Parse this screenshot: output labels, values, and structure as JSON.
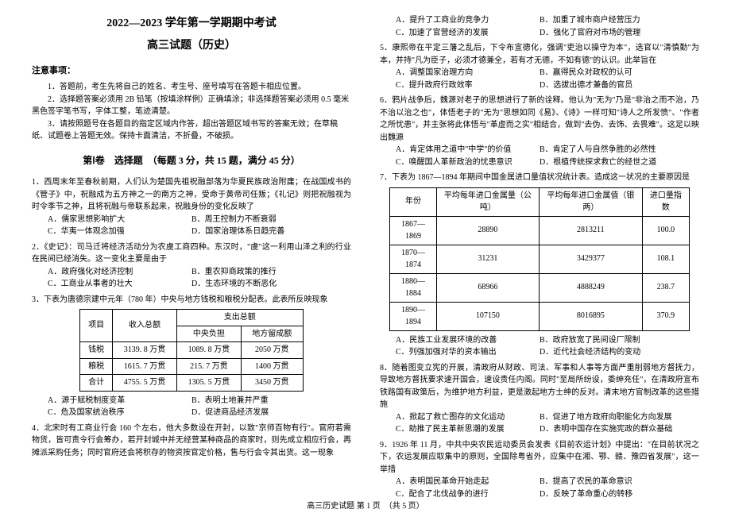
{
  "header": {
    "title_main": "2022—2023 学年第一学期期中考试",
    "title_sub": "高三试题（历史）"
  },
  "notice": {
    "head": "注意事项：",
    "items": [
      "1．答题前，考生先将自己的姓名、考生号、座号填写在答题卡相应位置。",
      "2．选择题答案必须用 2B 铅笔（按填涂样例）正确填涂；非选择题答案必须用 0.5 毫米黑色签字笔书写，字体工整，笔迹清楚。",
      "3．请按照题号在各题目的指定区域内作答，超出答题区域书写的答案无效；在草稿纸、试题卷上答题无效。保持卡面清洁，不折叠，不破损。"
    ]
  },
  "part1_title": "第Ⅰ卷　选择题　（每题 3 分，共 15 题，满分 45 分）",
  "q1": {
    "stem": "1．西周末年至春秋前期，人们认为楚国先祖祝融部落为华夏民族政治附庸；在战国成书的《管子》中，祝融成为五方神之一的南方之神，受命于黄帝司任叛；《礼记》则把祝融视为时令季节之神，且将祝融与帝联系起来，祝融身份的变化反映了",
    "opts": [
      "A．儒家思想影响扩大",
      "B．周王控制力不断衰弱",
      "C．华夷一体观念加强",
      "D．国家治理体系日趋完善"
    ]
  },
  "q2": {
    "stem": "2．《史记》：司马迁将经济活动分为农虞工商四种。东汉时，\"虞\"这一利用山泽之利的行业在民间已经消失。这一变化主要是由于",
    "opts": [
      "A．政府强化对经济控制",
      "B．重农抑商政策的推行",
      "C．工商业从事者的壮大",
      "D．生态环境的不断恶化"
    ]
  },
  "q3": {
    "stem": "3．下表为唐德宗建中元年（780 年）中央与地方钱税和粮税分配表。此表所反映现象",
    "table": {
      "head_r1": [
        "项目",
        "收入总额",
        "支出总额"
      ],
      "head_r2": [
        "",
        "",
        "中央负担",
        "地方留成额"
      ],
      "rows": [
        [
          "钱税",
          "3139. 8 万贯",
          "1089. 8 万贯",
          "2050 万贯"
        ],
        [
          "粮税",
          "1615. 7 万贯",
          "215. 7 万贯",
          "1400 万贯"
        ],
        [
          "合计",
          "4755. 5 万贯",
          "1305. 5 万贯",
          "3450 万贯"
        ]
      ]
    },
    "opts": [
      "A．源于赋税制度变革",
      "B．表明土地兼并严重",
      "C．危及国家统治秩序",
      "D．促进商品经济发展"
    ]
  },
  "q4": {
    "stem": "4．北宋时有工商业行会 160 个左右，他大多数设在开封，以致\"京师百物有行\"。官府若需物货，皆可责令行会筹办，若开封城中并无经营某种商品的商家时，则先成立相应行会，再摊派采购任务；同时官府还会将积存的物资按官定价格，售与行会令其出货。这一现象",
    "opts": [
      "A．提升了工商业的竞争力",
      "B．加重了城市商户经营压力",
      "C．加速了官营经济的发展",
      "D．强化了官府对市场的管理"
    ]
  },
  "q5": {
    "stem": "5．康熙帝在平定三藩之乱后，下令布宣德化，强调\"吏治以操守为本\"，选官以\"清慎勤\"为本，并持\"凡为臣子，必须才德兼全，若有才无德，不如有德\"的认识。此举旨在",
    "opts": [
      "A．调整国家治理方向",
      "B．赢得民众对政权的认可",
      "C．提升政府行政效率",
      "D．选拔出德才兼备的官员"
    ]
  },
  "q6": {
    "stem": "6．鸦片战争后，魏源对老子的思想进行了新的诠释。他认为\"无为\"乃是\"非治之而不治，乃不治以治之也\"，体悟老子的\"无为\"思想如同《易》、《诗》一样可知\"诗人之所发愤\"、\"作者之所忧患\"，并主张将此体悟与\"革虚而之实\"相结合，做到\"去伪、去饰、去畏难\"。这足以映出魏源",
    "opts": [
      "A．肯定体用之道中\"中学\"的价值",
      "B．肯定了人与自然争胜的必然性",
      "C．唤醒国人革新政治的忧患意识",
      "D．根植传统探求救亡的经世之道"
    ]
  },
  "q7": {
    "stem": "7．下表为 1867—1894 年期间中国金属进口量值状况统计表。造成这一状况的主要原因是",
    "table": {
      "cols": [
        "年份",
        "平均每年进口金属量（公吨）",
        "平均每年进口金属值（银两）",
        "进口量指数"
      ],
      "rows": [
        [
          "1867—1869",
          "28890",
          "2813211",
          "100.0"
        ],
        [
          "1870—1874",
          "31231",
          "3429377",
          "108.1"
        ],
        [
          "1880—1884",
          "68966",
          "4888249",
          "238.7"
        ],
        [
          "1890—1894",
          "107150",
          "8016895",
          "370.9"
        ]
      ]
    },
    "opts": [
      "A．民族工业发展环境的改善",
      "B．政府放宽了民间设厂限制",
      "C．列强加强对华的资本输出",
      "D．近代社会经济结构的变动"
    ]
  },
  "q8": {
    "stem": "8．随着图变立宪的开展，清政府从财政、司法、军事和人事等方面严重削弱地方督抚力，导致地方督抚要求速开国会，速设责任内阁。同时\"至局所纷设，委绅充任\"，在清政府宣布铁路国有政策后，为维护地方利益，更是激起地方士绅的反对。清末地方官制改革的这些措施",
    "opts": [
      "A．掀起了救亡图存的文化运动",
      "B．促进了地方政府向职能化方向发展",
      "C．助推了民主革新思潮的发展",
      "D．表明中国存在实施宪政的群众基础"
    ]
  },
  "q9": {
    "stem": "9．1926 年 11 月，中共中央农民运动委员会发表《目前农运计划》中提出：\"在目前状况之下，农运发展应取集中的原则，全国除粤省外，应集中在湘、鄂、赣、豫四省发展\"，这一举措",
    "opts": [
      "A．表明国民革命开始走起",
      "B．提高了农民的革命意识",
      "C．配合了北伐战争的进行",
      "D．反映了革命重心的转移"
    ]
  },
  "footer": "高三历史试题 第 1 页　（共 5 页）"
}
